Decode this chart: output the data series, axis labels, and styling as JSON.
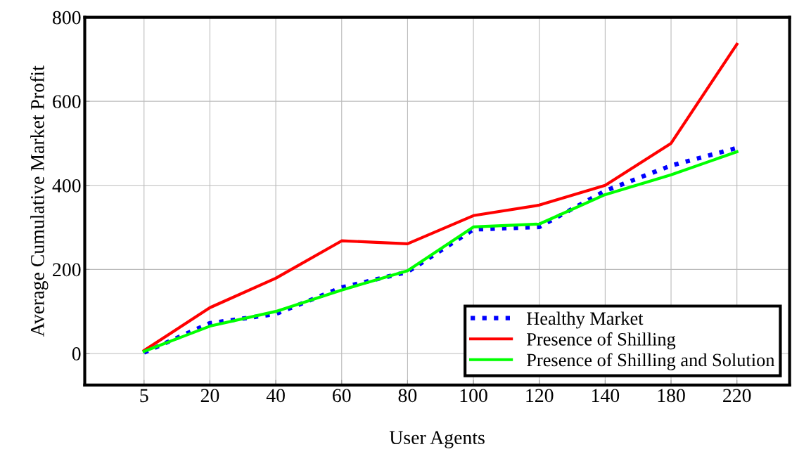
{
  "chart_data": {
    "type": "line",
    "xlabel": "User Agents",
    "ylabel": "Average Cumulative Market Profit",
    "categories": [
      "5",
      "20",
      "40",
      "60",
      "80",
      "100",
      "120",
      "140",
      "180",
      "220"
    ],
    "series": [
      {
        "name": "Healthy Market",
        "color": "#0000ff",
        "line_style": "dotted",
        "values": [
          2,
          72,
          94,
          157,
          194,
          295,
          301,
          387,
          447,
          489
        ]
      },
      {
        "name": "Presence of Shilling",
        "color": "#ff0000",
        "line_style": "solid",
        "values": [
          7,
          109,
          179,
          268,
          261,
          328,
          353,
          400,
          500,
          736
        ]
      },
      {
        "name": "Presence of Shilling and Solution",
        "color": "#00ff00",
        "line_style": "solid",
        "values": [
          5,
          65,
          100,
          151,
          197,
          301,
          308,
          378,
          425,
          480
        ]
      }
    ],
    "ylim": [
      -75,
      800
    ],
    "yticks": [
      0,
      200,
      400,
      600,
      800
    ],
    "grid": true,
    "legend": "bottom right",
    "marker": "none"
  }
}
